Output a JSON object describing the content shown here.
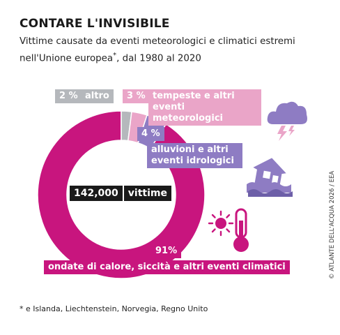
{
  "header": {
    "title": "CONTARE L'INVISIBILE",
    "subtitle_main": "Vittime causate da eventi meteorologici e climatici estremi nell'Unione europea",
    "subtitle_star": "*",
    "subtitle_end": ", dal 1980 al 2020"
  },
  "center": {
    "value": "142,000",
    "label": "vittime"
  },
  "footnote": "* e Islanda, Liechtenstein, Norvegia, Regno Unito",
  "credit": "© ATLANTE DELL'ACQUA 2026 / EEA",
  "colors": {
    "heat": "#c8157e",
    "storm": "#eaa5c8",
    "flood": "#8e7cc3",
    "other": "#b5b8bc",
    "dark": "#1a1a1a"
  },
  "icons": [
    "storm-cloud-icon",
    "flooded-house-icon",
    "sun-icon",
    "thermometer-icon"
  ],
  "chart_data": {
    "type": "pie",
    "variant": "donut",
    "title": "CONTARE L'INVISIBILE",
    "total": 142000,
    "total_label": "vittime",
    "slices": [
      {
        "label": "ondate di calore, siccità e altri eventi climatici",
        "pct_label": "91%",
        "value": 91,
        "color": "#c8157e"
      },
      {
        "label": "altro",
        "pct_label": "2 %",
        "value": 2,
        "color": "#b5b8bc"
      },
      {
        "label": "tempeste e altri eventi meteorologici",
        "pct_label": "3 %",
        "value": 3,
        "color": "#eaa5c8"
      },
      {
        "label": "alluvioni e altri eventi idrologici",
        "pct_label": "4 %",
        "value": 4,
        "color": "#8e7cc3"
      }
    ]
  }
}
